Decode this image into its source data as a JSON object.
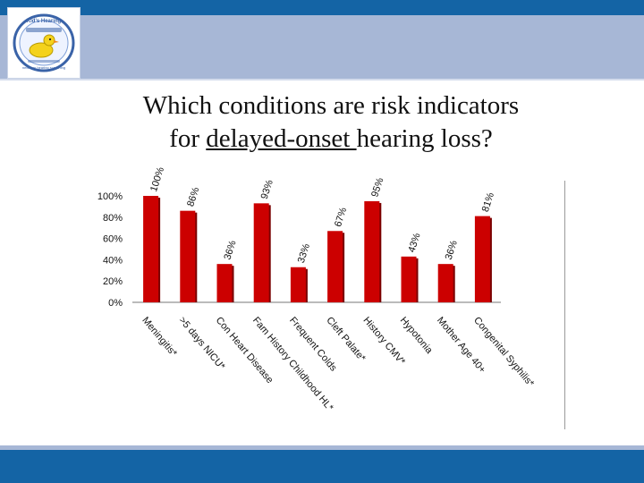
{
  "logo": {
    "text_top": "Kid's Hearing",
    "text_bottom": "newborn hearing screening"
  },
  "title": {
    "line1": "Which conditions are risk indicators",
    "line2_before": "for ",
    "line2_underlined": "delayed-onset ",
    "line2_after": "hearing loss?"
  },
  "colors": {
    "top_band": "#1464a5",
    "band_light": "#a7b7d6",
    "bar": "#cc0000",
    "bar_shadow": "#7a0000"
  },
  "chart_data": {
    "type": "bar",
    "title": "",
    "xlabel": "",
    "ylabel": "",
    "ylim": [
      0,
      100
    ],
    "y_ticks": [
      "0%",
      "20%",
      "40%",
      "60%",
      "80%",
      "100%"
    ],
    "grid": false,
    "categories": [
      "Meningitis*",
      ">5 days NICU*",
      "Con Heart Disease",
      "Fam History Childhood HL*",
      "Frequent Colds",
      "Cleft Palate*",
      "History CMV*",
      "Hypotonia",
      "Mother Age 40+",
      "Congenital Syphilis*"
    ],
    "values": [
      100,
      86,
      36,
      93,
      33,
      67,
      95,
      43,
      36,
      81
    ],
    "data_labels": [
      "100%",
      "86%",
      "36%",
      "93%",
      "33%",
      "67%",
      "95%",
      "43%",
      "36%",
      "81%"
    ]
  }
}
